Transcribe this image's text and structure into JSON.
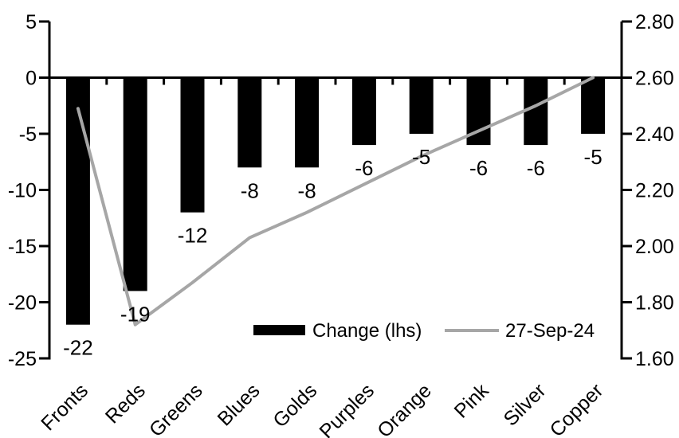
{
  "chart_data": {
    "type": "bar",
    "subtype": "combo-bar-line-dual-axis",
    "title": "",
    "categories": [
      "Fronts",
      "Reds",
      "Greens",
      "Blues",
      "Golds",
      "Purples",
      "Orange",
      "Pink",
      "Silver",
      "Copper"
    ],
    "series": [
      {
        "name": "Change (lhs)",
        "type": "bar",
        "axis": "left",
        "color": "#000000",
        "values": [
          -22,
          -19,
          -12,
          -8,
          -8,
          -6,
          -5,
          -6,
          -6,
          -5
        ]
      },
      {
        "name": "27-Sep-24",
        "type": "line",
        "axis": "right",
        "color": "#a6a6a6",
        "values": [
          2.49,
          1.72,
          1.87,
          2.03,
          2.12,
          2.22,
          2.32,
          2.41,
          2.5,
          2.6
        ]
      }
    ],
    "data_labels": [
      "-22",
      "-19",
      "-12",
      "-8",
      "-8",
      "-6",
      "-5",
      "-6",
      "-6",
      "-5"
    ],
    "left_axis": {
      "min": -25,
      "max": 5,
      "step": 5,
      "ticks": [
        "5",
        "0",
        "-5",
        "-10",
        "-15",
        "-20",
        "-25"
      ]
    },
    "right_axis": {
      "min": 1.6,
      "max": 2.8,
      "step": 0.2,
      "ticks": [
        "2.80",
        "2.60",
        "2.40",
        "2.20",
        "2.00",
        "1.80",
        "1.60"
      ]
    },
    "grid": false,
    "legend_position": "bottom-center-inside",
    "legend": [
      "Change (lhs)",
      "27-Sep-24"
    ]
  },
  "colors": {
    "bar": "#000000",
    "line": "#a6a6a6",
    "axis": "#000000",
    "text": "#000000",
    "background": "#ffffff"
  }
}
